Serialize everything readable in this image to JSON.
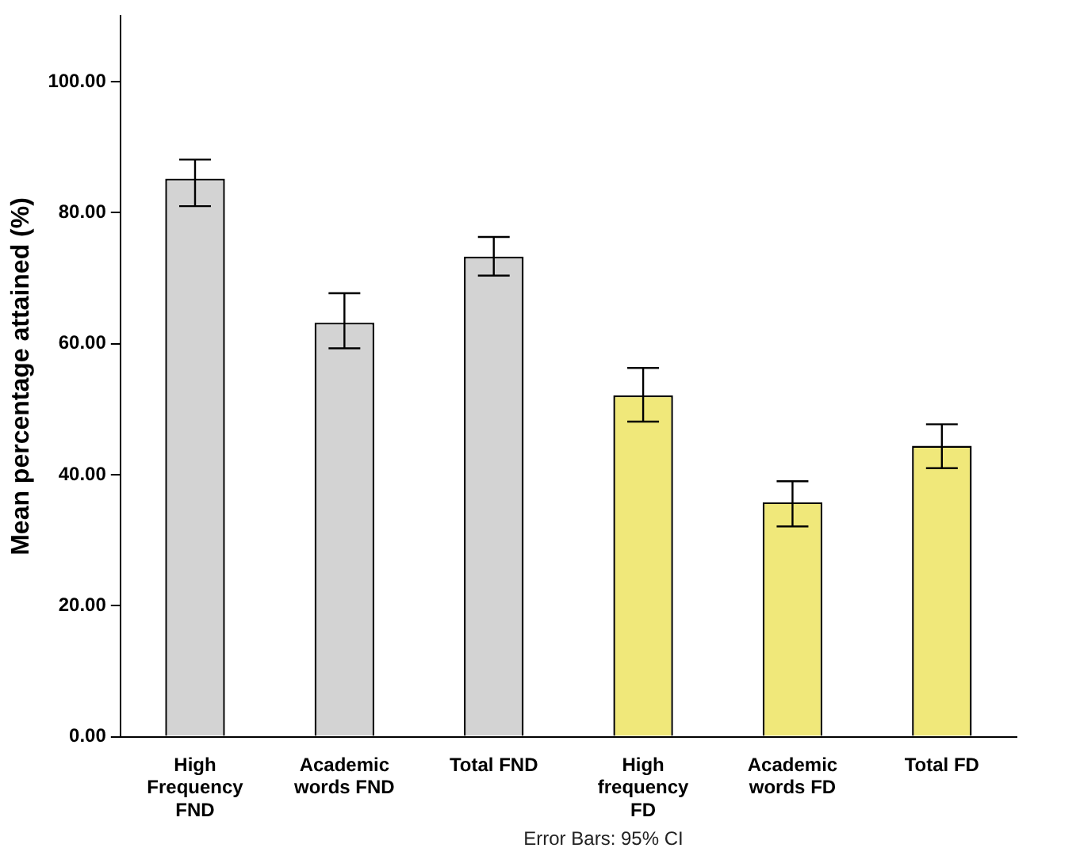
{
  "chart_data": {
    "type": "bar",
    "ylabel": "Mean percentage attained (%)",
    "categories": [
      "High Frequency FND",
      "Academic words FND",
      "Total FND",
      "High frequency FD",
      "Academic words FD",
      "Total FD"
    ],
    "values": [
      85.2,
      63.2,
      73.3,
      52.1,
      35.8,
      44.4
    ],
    "colors": [
      "#d3d3d3",
      "#d3d3d3",
      "#d3d3d3",
      "#f0e87a",
      "#f0e87a",
      "#f0e87a"
    ],
    "errors": [
      [
        81.0,
        88.1
      ],
      [
        59.3,
        67.7
      ],
      [
        70.4,
        76.3
      ],
      [
        48.1,
        56.3
      ],
      [
        32.1,
        39.0
      ],
      [
        41.0,
        47.7
      ]
    ],
    "ylim": [
      0,
      110
    ],
    "yticks": [
      {
        "value": 0,
        "label": "0.00"
      },
      {
        "value": 20,
        "label": "20.00"
      },
      {
        "value": 40,
        "label": "40.00"
      },
      {
        "value": 60,
        "label": "60.00"
      },
      {
        "value": 80,
        "label": "80.00"
      },
      {
        "value": 100,
        "label": "100.00"
      }
    ],
    "grid": false,
    "legend": false,
    "annotations": [
      "Error Bars: 95% CI"
    ]
  }
}
